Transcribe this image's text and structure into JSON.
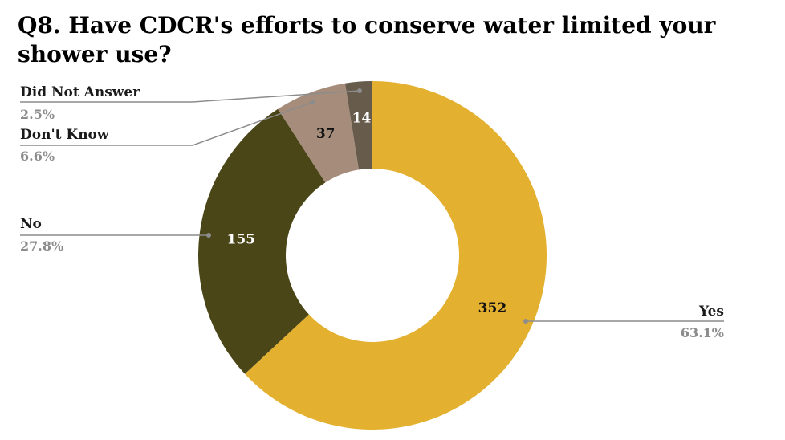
{
  "title": "Q8.  Have CDCR's efforts to conserve water limited your shower use?",
  "chart_data": {
    "type": "pie",
    "variant": "donut",
    "title": "Q8.  Have CDCR's efforts to conserve water limited your shower use?",
    "categories": [
      "Yes",
      "No",
      "Don't Know",
      "Did Not Answer"
    ],
    "values": [
      352,
      155,
      37,
      14
    ],
    "percent_labels": [
      "63.1%",
      "27.8%",
      "6.6%",
      "2.5%"
    ],
    "colors": [
      "#E3B02F",
      "#4A4617",
      "#A68D7B",
      "#675B4C"
    ],
    "value_label_colors": [
      "#111111",
      "#ffffff",
      "#111111",
      "#ffffff"
    ]
  }
}
